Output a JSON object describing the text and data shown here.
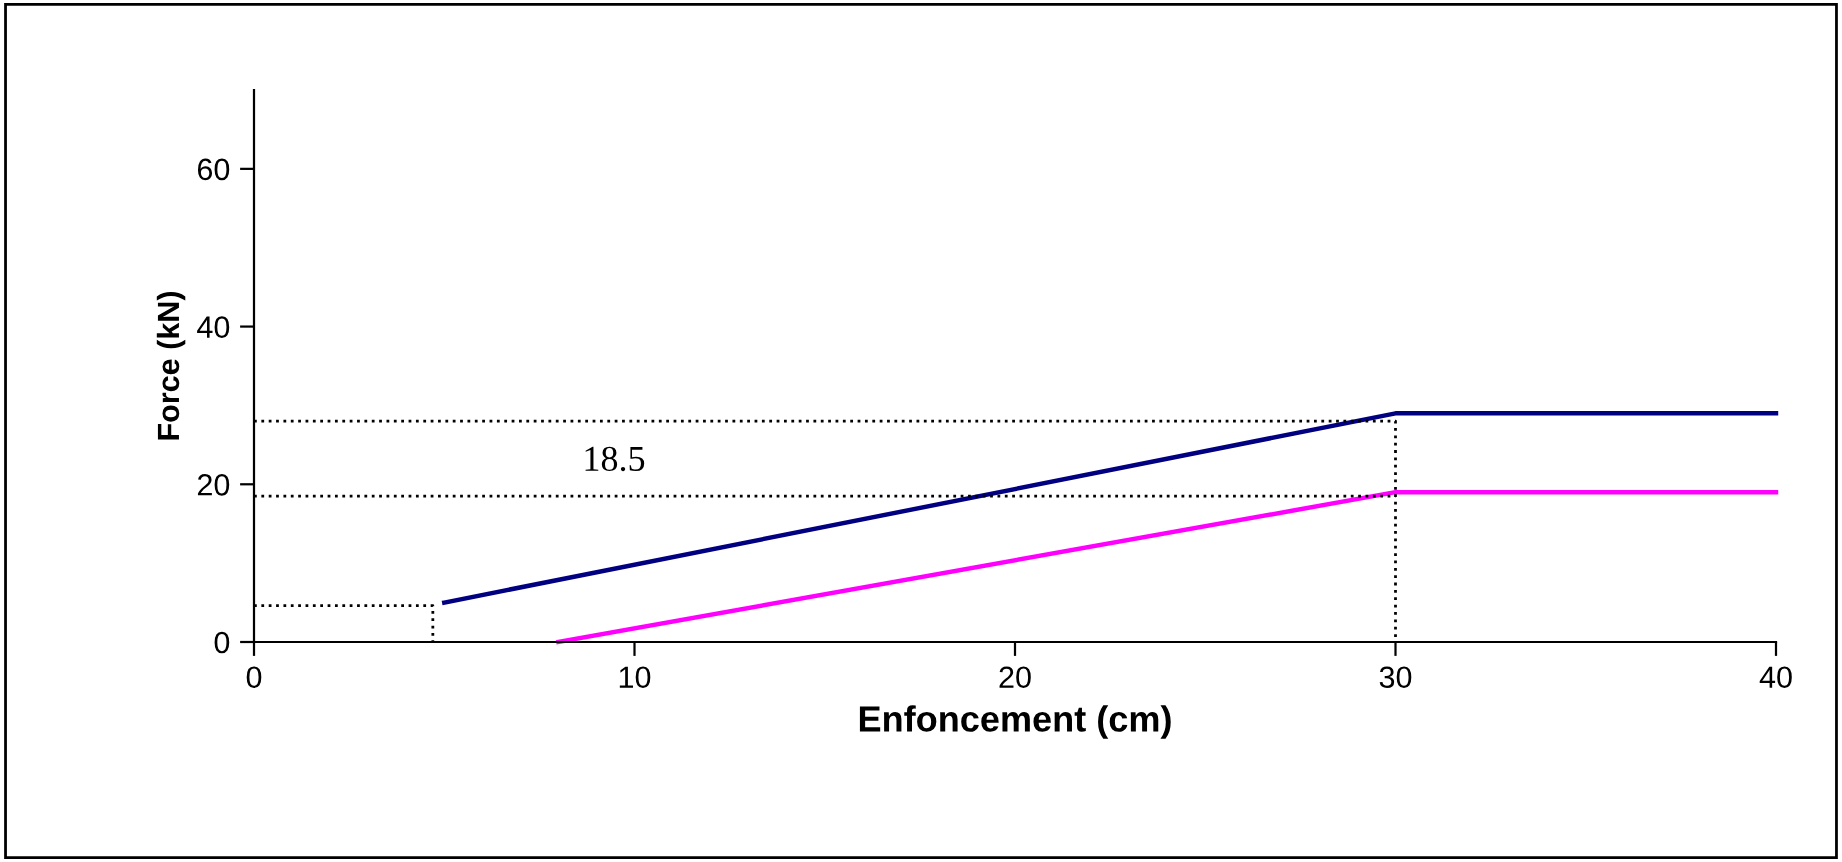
{
  "chart_data": {
    "type": "line",
    "xlabel": "Enfoncement (cm)",
    "ylabel": "Force (kN)",
    "xlim": [
      0,
      40
    ],
    "ylim": [
      0,
      70
    ],
    "xticks": [
      0,
      10,
      20,
      30,
      40
    ],
    "yticks": [
      0,
      20,
      40,
      60
    ],
    "grid": false,
    "legend": false,
    "marker": "none",
    "series": [
      {
        "color": "#000080",
        "x": [
          5,
          30,
          40
        ],
        "values": [
          5,
          29,
          29
        ],
        "line_style": "solid"
      },
      {
        "color": "#ff00ff",
        "x": [
          8,
          30,
          40
        ],
        "values": [
          0,
          19,
          19
        ],
        "line_style": "solid"
      },
      {
        "color": "#000000",
        "x": [
          0,
          30,
          30
        ],
        "values": [
          28,
          28,
          0
        ],
        "line_style": "dotted"
      },
      {
        "color": "#000000",
        "x": [
          0,
          30
        ],
        "values": [
          18.5,
          18.5
        ],
        "line_style": "dotted"
      },
      {
        "color": "#000000",
        "x": [
          0,
          4.7,
          4.7
        ],
        "values": [
          4.6,
          4.6,
          0
        ],
        "line_style": "dotted"
      }
    ],
    "annotations": [
      "18.5"
    ]
  }
}
